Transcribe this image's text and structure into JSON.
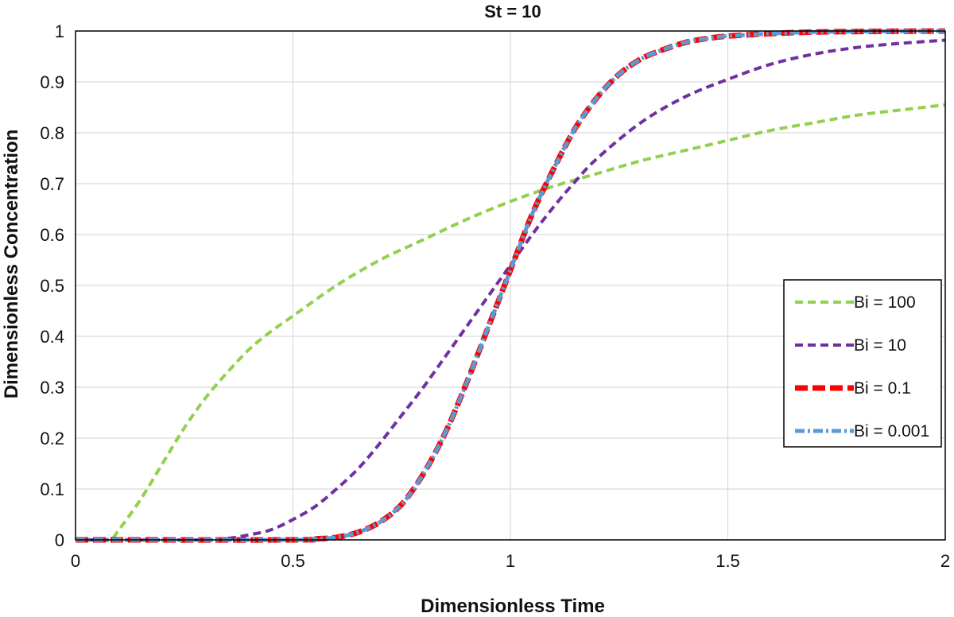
{
  "chart_data": {
    "type": "line",
    "title": "St = 10",
    "xlabel": "Dimensionless Time",
    "ylabel": "Dimensionless Concentration",
    "xlim": [
      0,
      2
    ],
    "ylim": [
      0,
      1
    ],
    "x_ticks": [
      "0",
      "0.5",
      "1",
      "1.5",
      "2"
    ],
    "y_ticks": [
      "0",
      "0.1",
      "0.2",
      "0.3",
      "0.4",
      "0.5",
      "0.6",
      "0.7",
      "0.8",
      "0.9",
      "1"
    ],
    "grid": true,
    "legend_position": "right",
    "series": [
      {
        "name": "Bi = 100",
        "color": "#92d050",
        "dash": "short",
        "x": [
          0,
          0.05,
          0.08,
          0.1,
          0.15,
          0.2,
          0.25,
          0.3,
          0.35,
          0.4,
          0.45,
          0.5,
          0.6,
          0.7,
          0.8,
          0.9,
          1.0,
          1.1,
          1.2,
          1.3,
          1.4,
          1.5,
          1.6,
          1.7,
          1.8,
          1.9,
          2.0
        ],
        "y": [
          0,
          0,
          0,
          0.02,
          0.08,
          0.15,
          0.22,
          0.28,
          0.33,
          0.375,
          0.41,
          0.44,
          0.5,
          0.55,
          0.59,
          0.63,
          0.665,
          0.695,
          0.72,
          0.745,
          0.765,
          0.785,
          0.805,
          0.82,
          0.835,
          0.845,
          0.855
        ]
      },
      {
        "name": "Bi = 10",
        "color": "#7030a0",
        "dash": "short",
        "x": [
          0,
          0.3,
          0.35,
          0.4,
          0.45,
          0.5,
          0.55,
          0.6,
          0.65,
          0.7,
          0.75,
          0.8,
          0.85,
          0.9,
          0.95,
          1.0,
          1.05,
          1.1,
          1.15,
          1.2,
          1.3,
          1.4,
          1.5,
          1.6,
          1.7,
          1.8,
          1.9,
          2.0
        ],
        "y": [
          0,
          0,
          0.003,
          0.01,
          0.02,
          0.04,
          0.065,
          0.1,
          0.14,
          0.19,
          0.245,
          0.3,
          0.36,
          0.42,
          0.48,
          0.54,
          0.6,
          0.655,
          0.705,
          0.75,
          0.82,
          0.87,
          0.905,
          0.935,
          0.955,
          0.968,
          0.976,
          0.982
        ]
      },
      {
        "name": "Bi = 0.1",
        "color": "#ff0000",
        "dash": "long",
        "x": [
          0,
          0.5,
          0.55,
          0.6,
          0.65,
          0.7,
          0.75,
          0.8,
          0.85,
          0.9,
          0.95,
          1.0,
          1.05,
          1.1,
          1.15,
          1.2,
          1.25,
          1.3,
          1.35,
          1.4,
          1.45,
          1.5,
          1.6,
          1.7,
          1.8,
          2.0
        ],
        "y": [
          0,
          0,
          0.002,
          0.005,
          0.015,
          0.035,
          0.07,
          0.13,
          0.21,
          0.31,
          0.42,
          0.53,
          0.64,
          0.73,
          0.81,
          0.87,
          0.915,
          0.945,
          0.963,
          0.977,
          0.985,
          0.99,
          0.995,
          0.998,
          0.999,
          1.0
        ]
      },
      {
        "name": "Bi = 0.001",
        "color": "#5b9bd5",
        "dash": "mixed",
        "x": [
          0,
          0.5,
          0.55,
          0.6,
          0.65,
          0.7,
          0.75,
          0.8,
          0.85,
          0.9,
          0.95,
          1.0,
          1.05,
          1.1,
          1.15,
          1.2,
          1.25,
          1.3,
          1.35,
          1.4,
          1.45,
          1.5,
          1.6,
          1.7,
          1.8,
          2.0
        ],
        "y": [
          0,
          0,
          0.002,
          0.005,
          0.015,
          0.035,
          0.07,
          0.13,
          0.21,
          0.31,
          0.42,
          0.53,
          0.64,
          0.73,
          0.81,
          0.87,
          0.915,
          0.945,
          0.963,
          0.977,
          0.985,
          0.99,
          0.995,
          0.998,
          0.999,
          1.0
        ]
      }
    ]
  }
}
